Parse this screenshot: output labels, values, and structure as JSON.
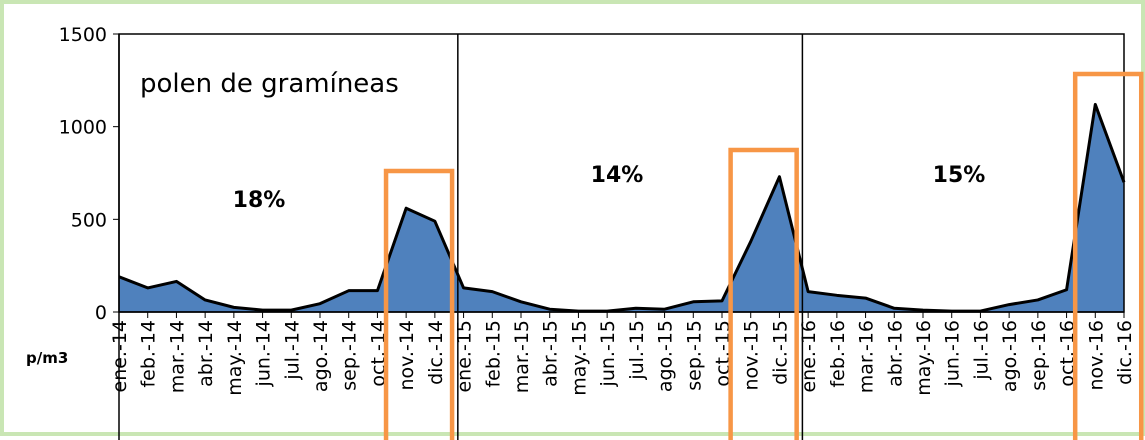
{
  "chart_data": {
    "type": "area",
    "title": "polen de gramíneas",
    "ylabel": "p/m3",
    "ylim": [
      0,
      1500
    ],
    "yticks": [
      0,
      500,
      1000,
      1500
    ],
    "grid": false,
    "categories": [
      "ene.-14",
      "feb.-14",
      "mar.-14",
      "abr.-14",
      "may.-14",
      "jun.-14",
      "jul.-14",
      "ago.-14",
      "sep.-14",
      "oct.-14",
      "nov.-14",
      "dic.-14",
      "ene.-15",
      "feb.-15",
      "mar.-15",
      "abr.-15",
      "may.-15",
      "jun.-15",
      "jul.-15",
      "ago.-15",
      "sep.-15",
      "oct.-15",
      "nov.-15",
      "dic.-15",
      "ene.-16",
      "feb.-16",
      "mar.-16",
      "abr.-16",
      "may.-16",
      "jun.-16",
      "jul.-16",
      "ago.-16",
      "sep.-16",
      "oct.-16",
      "nov.-16",
      "dic.-16"
    ],
    "values": [
      190,
      130,
      165,
      65,
      25,
      10,
      10,
      45,
      115,
      115,
      560,
      490,
      130,
      110,
      55,
      15,
      5,
      5,
      20,
      15,
      55,
      60,
      380,
      730,
      110,
      90,
      75,
      20,
      10,
      5,
      5,
      40,
      65,
      120,
      1120,
      700
    ],
    "fill_color": "#4f81bd",
    "line_color": "#000000",
    "highlight_color": "#f79646",
    "annotations": [
      "18%",
      "14%",
      "15%"
    ],
    "highlights": [
      {
        "from": "oct.-14",
        "to": "dic.-14"
      },
      {
        "from": "oct.-15",
        "to": "dic.-15"
      },
      {
        "from": "oct.-16",
        "to": "dic.-16"
      }
    ]
  }
}
